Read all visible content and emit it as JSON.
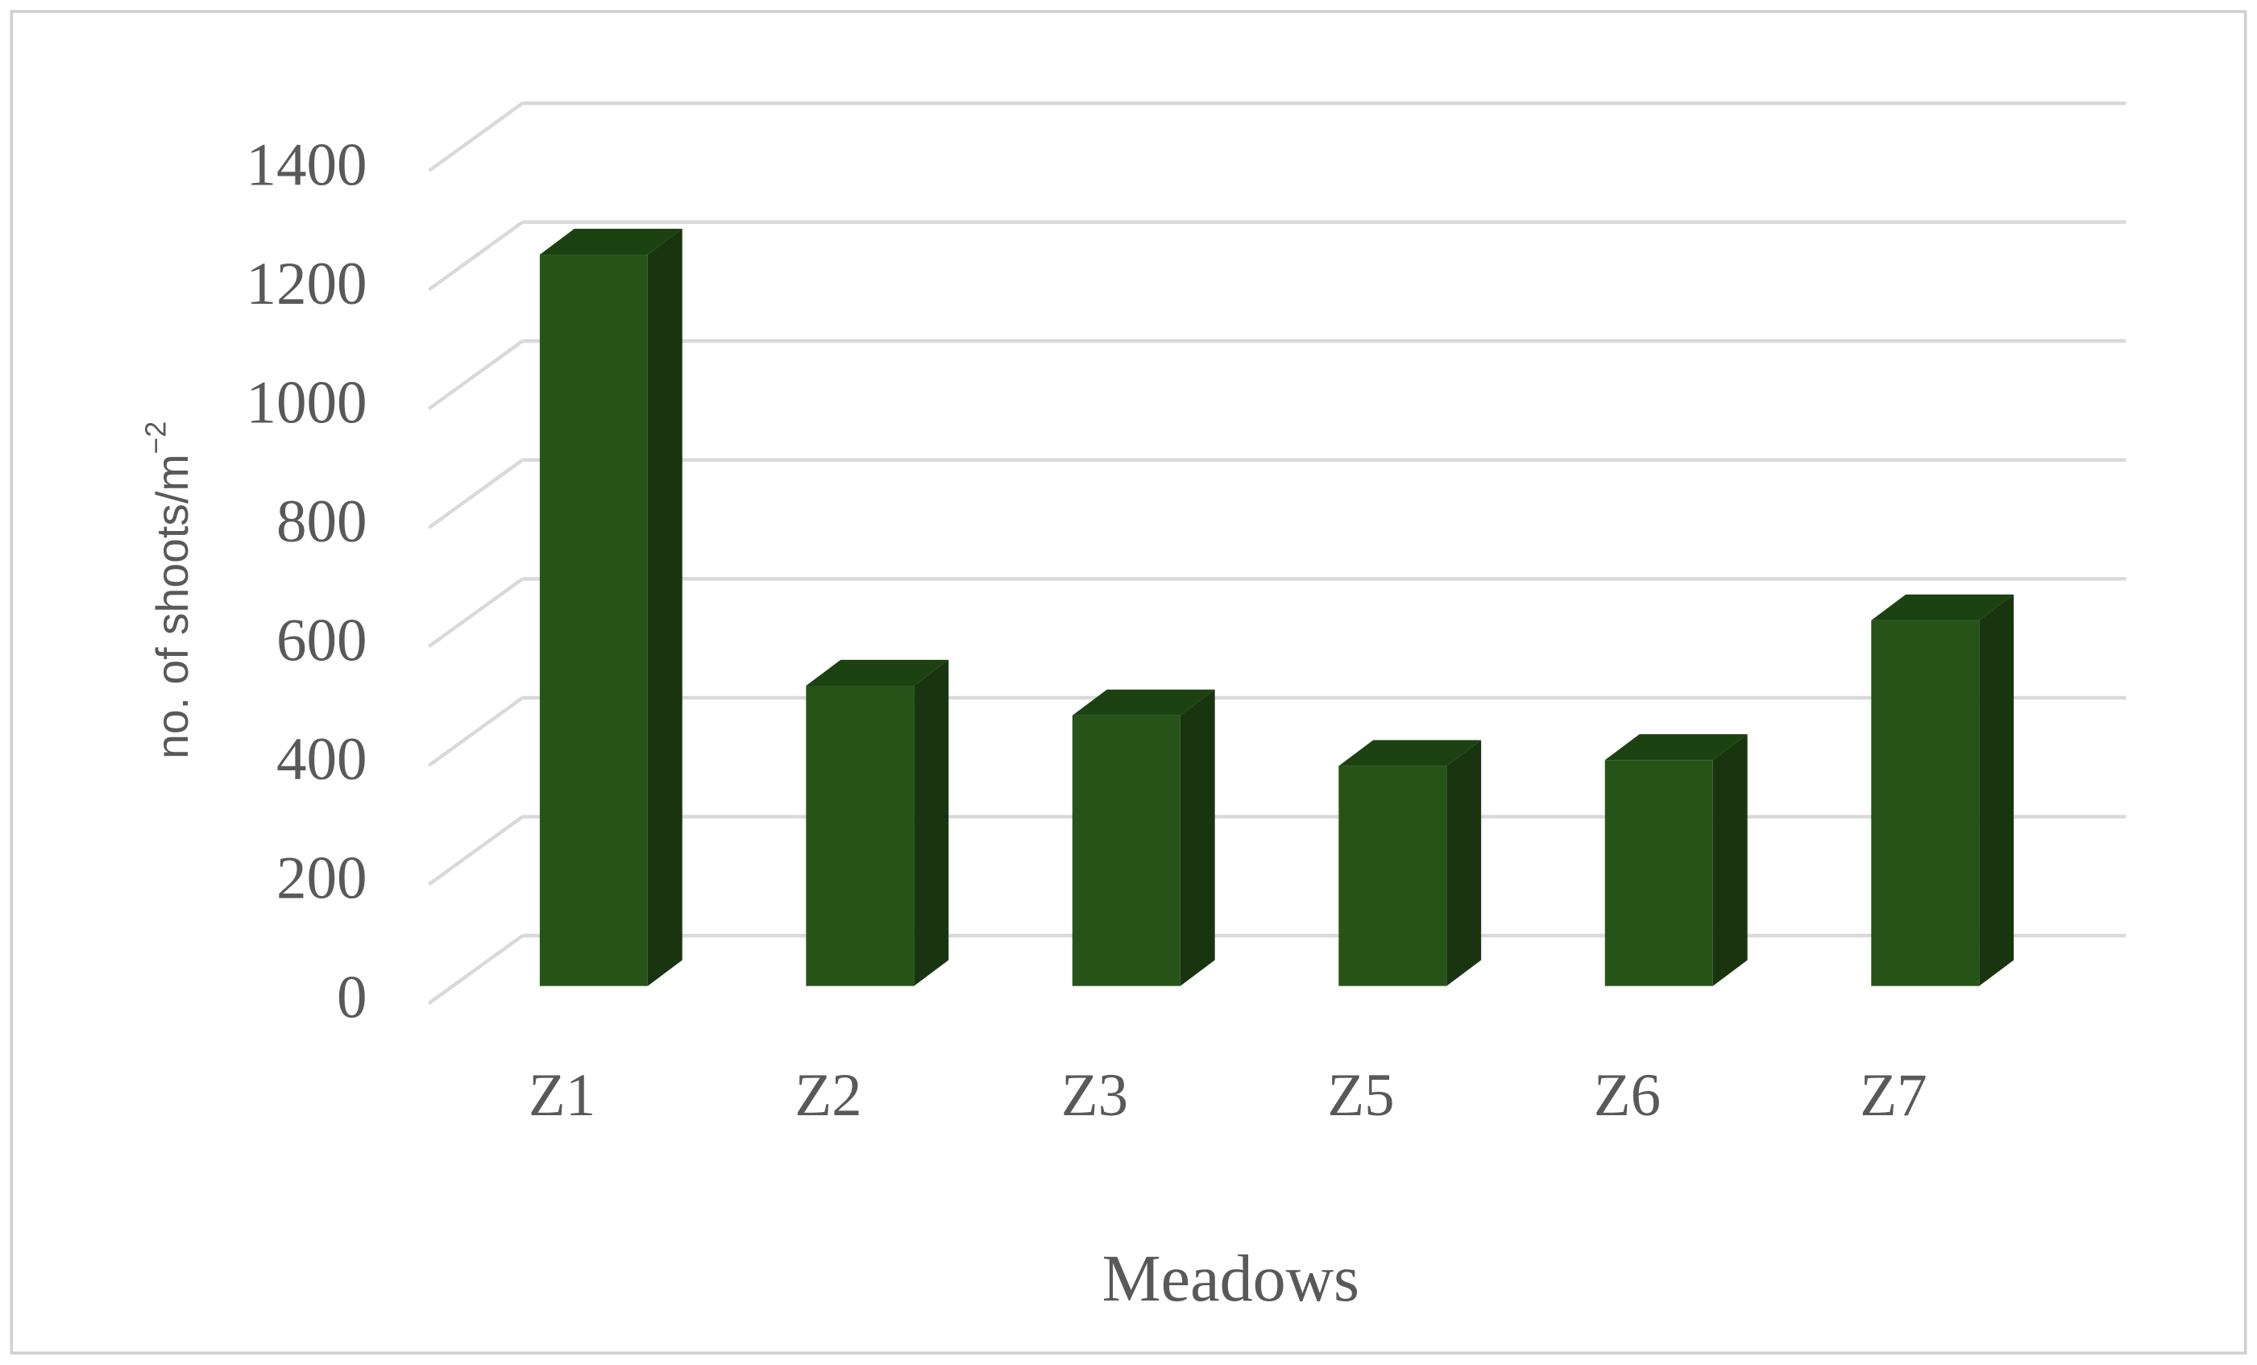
{
  "chart_data": {
    "type": "bar3d",
    "x_label": "Meadows",
    "y_label": "no. of shoots/m",
    "y_label_superscript": "−2",
    "categories": [
      "Z1",
      "Z2",
      "Z3",
      "Z5",
      "Z6",
      "Z7"
    ],
    "values": [
      1230,
      505,
      455,
      370,
      380,
      615
    ],
    "color": "#265418",
    "ylim": [
      0,
      1400
    ],
    "yticks": [
      0,
      200,
      400,
      600,
      800,
      1000,
      1200,
      1400
    ],
    "grid": true
  }
}
